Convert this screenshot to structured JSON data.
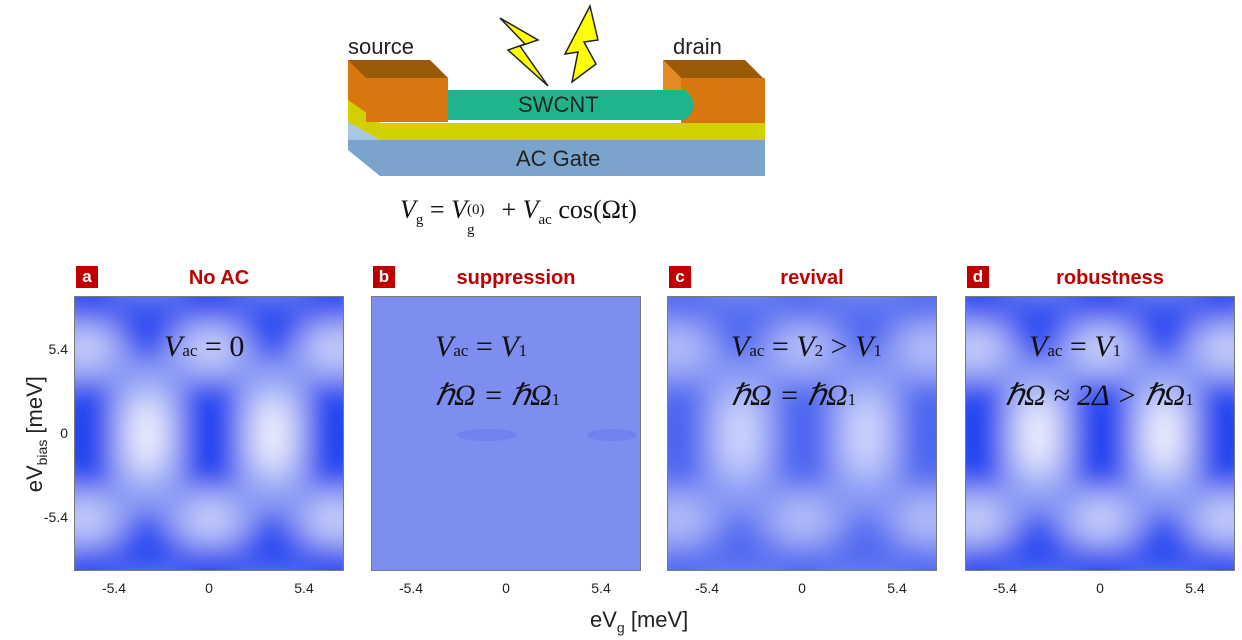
{
  "device": {
    "source_label": "source",
    "drain_label": "drain",
    "tube_label": "SWCNT",
    "gate_label": "AC Gate",
    "equation": {
      "lhs": "V",
      "lhs_sub": "g",
      "eq": "=",
      "term1": "V",
      "term1_sub": "g",
      "term1_sup": "(0)",
      "plus": "+",
      "term2": "V",
      "term2_sub": "ac",
      "cos": "cos(Ωt)"
    }
  },
  "panels": [
    {
      "letter": "a",
      "title": "No AC",
      "line1": {
        "lhs": "V",
        "sub": "ac",
        "rhs": "= 0"
      },
      "line2": null
    },
    {
      "letter": "b",
      "title": "suppression",
      "line1": {
        "lhs": "V",
        "sub": "ac",
        "rhs": "= V",
        "rhs_sub": "1"
      },
      "line2": {
        "text": "ℏΩ = ℏΩ",
        "sub": "1"
      }
    },
    {
      "letter": "c",
      "title": "revival",
      "line1": {
        "lhs": "V",
        "sub": "ac",
        "rhs": "= V",
        "rhs_sub": "2",
        "tail": " > V",
        "tail_sub": "1"
      },
      "line2": {
        "text": "ℏΩ = ℏΩ",
        "sub": "1"
      }
    },
    {
      "letter": "d",
      "title": "robustness",
      "line1": {
        "lhs": "V",
        "sub": "ac",
        "rhs": "= V",
        "rhs_sub": "1"
      },
      "line2": {
        "text": "ℏΩ ≈ 2Δ > ℏΩ",
        "sub": "1"
      }
    }
  ],
  "axes": {
    "x_label_main": "eV",
    "x_label_sub": "g",
    "x_label_unit": " [meV]",
    "y_label_main": "eV",
    "y_label_sub": "bias",
    "y_label_unit": " [meV]",
    "x_ticks": [
      "-5.4",
      "0",
      "5.4"
    ],
    "y_ticks": [
      "5.4",
      "0",
      "-5.4"
    ]
  },
  "colors": {
    "map_blue": "#1a3ff0",
    "map_white": "#ffffff",
    "suppressed": "#7d8df0",
    "badge_red": "#c00000",
    "tube_green": "#1db58d",
    "contact_orange": "#d9770f",
    "oxide_yellow": "#d2d000",
    "gate_blue": "#7ba4cc",
    "bolt_yellow": "#ffff00"
  }
}
